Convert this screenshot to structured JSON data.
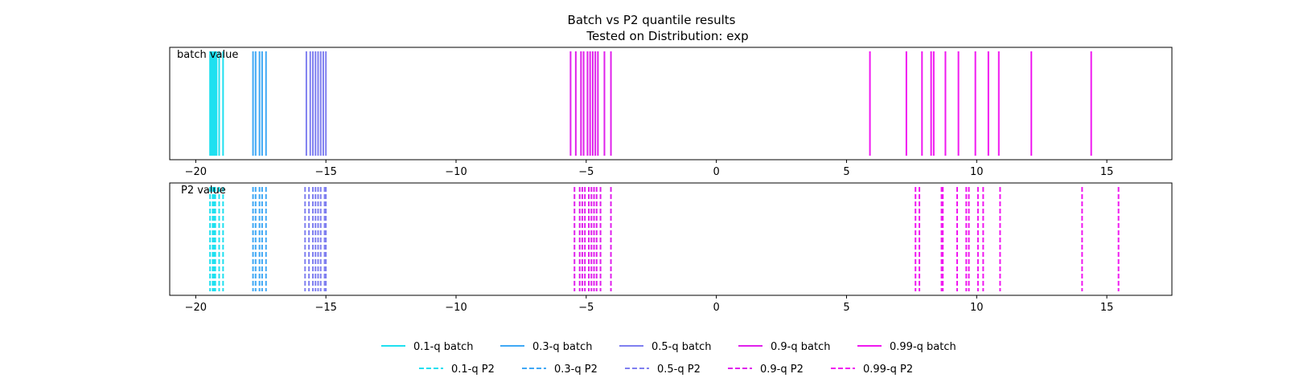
{
  "chart_data": {
    "type": "event-lines",
    "title": "Batch vs P2 quantile results",
    "subtitle": "Tested on Distribution: exp",
    "xlim": [
      -21,
      17.5
    ],
    "x_ticks": [
      -20,
      -15,
      -10,
      -5,
      0,
      5,
      10,
      15
    ],
    "x_tick_labels": [
      "−20",
      "−15",
      "−10",
      "−5",
      "0",
      "5",
      "10",
      "15"
    ],
    "panels": [
      {
        "label": "batch value",
        "line_style": "solid",
        "series": [
          {
            "name": "0.1-q batch",
            "color": "#1fe0f0",
            "values": [
              -19.45,
              -19.4,
              -19.35,
              -19.3,
              -19.25,
              -19.2,
              -19.1,
              -18.95
            ]
          },
          {
            "name": "0.3-q batch",
            "color": "#3fa8f5",
            "values": [
              -17.8,
              -17.7,
              -17.55,
              -17.45,
              -17.3
            ]
          },
          {
            "name": "0.5-q batch",
            "color": "#7f7ff0",
            "values": [
              -15.75,
              -15.6,
              -15.5,
              -15.4,
              -15.3,
              -15.2,
              -15.1,
              -15.0
            ]
          },
          {
            "name": "0.9-q batch",
            "color": "#e020ec",
            "values": [
              -5.6,
              -5.4,
              -5.2,
              -5.1,
              -4.95,
              -4.85,
              -4.75,
              -4.65,
              -4.55,
              -4.3,
              -4.05
            ]
          },
          {
            "name": "0.99-q batch",
            "color": "#f018f0",
            "values": [
              5.9,
              7.3,
              7.9,
              8.25,
              8.35,
              8.8,
              9.3,
              9.95,
              10.45,
              10.85,
              12.1,
              14.4
            ]
          }
        ]
      },
      {
        "label": "P2 value",
        "line_style": "dashed",
        "series": [
          {
            "name": "0.1-q P2",
            "color": "#1fe0f0",
            "values": [
              -19.45,
              -19.35,
              -19.3,
              -19.25,
              -19.1,
              -18.95
            ]
          },
          {
            "name": "0.3-q P2",
            "color": "#3fa8f5",
            "values": [
              -17.8,
              -17.7,
              -17.55,
              -17.45,
              -17.3
            ]
          },
          {
            "name": "0.5-q P2",
            "color": "#7f7ff0",
            "values": [
              -15.8,
              -15.65,
              -15.5,
              -15.4,
              -15.3,
              -15.2,
              -15.05,
              -15.0
            ]
          },
          {
            "name": "0.9-q P2",
            "color": "#e020ec",
            "values": [
              -5.45,
              -5.25,
              -5.15,
              -5.05,
              -4.9,
              -4.8,
              -4.7,
              -4.6,
              -4.45,
              -4.05
            ]
          },
          {
            "name": "0.99-q P2",
            "color": "#f018f0",
            "values": [
              7.65,
              7.8,
              8.65,
              8.7,
              9.25,
              9.6,
              9.7,
              10.05,
              10.25,
              10.9,
              14.05,
              15.45
            ]
          }
        ]
      }
    ],
    "legend": {
      "placement": "bottom-center",
      "rows": [
        [
          "0.1-q batch",
          "0.3-q batch",
          "0.5-q batch",
          "0.9-q batch",
          "0.99-q batch"
        ],
        [
          "0.1-q P2",
          "0.3-q P2",
          "0.5-q P2",
          "0.9-q P2",
          "0.99-q P2"
        ]
      ]
    }
  }
}
